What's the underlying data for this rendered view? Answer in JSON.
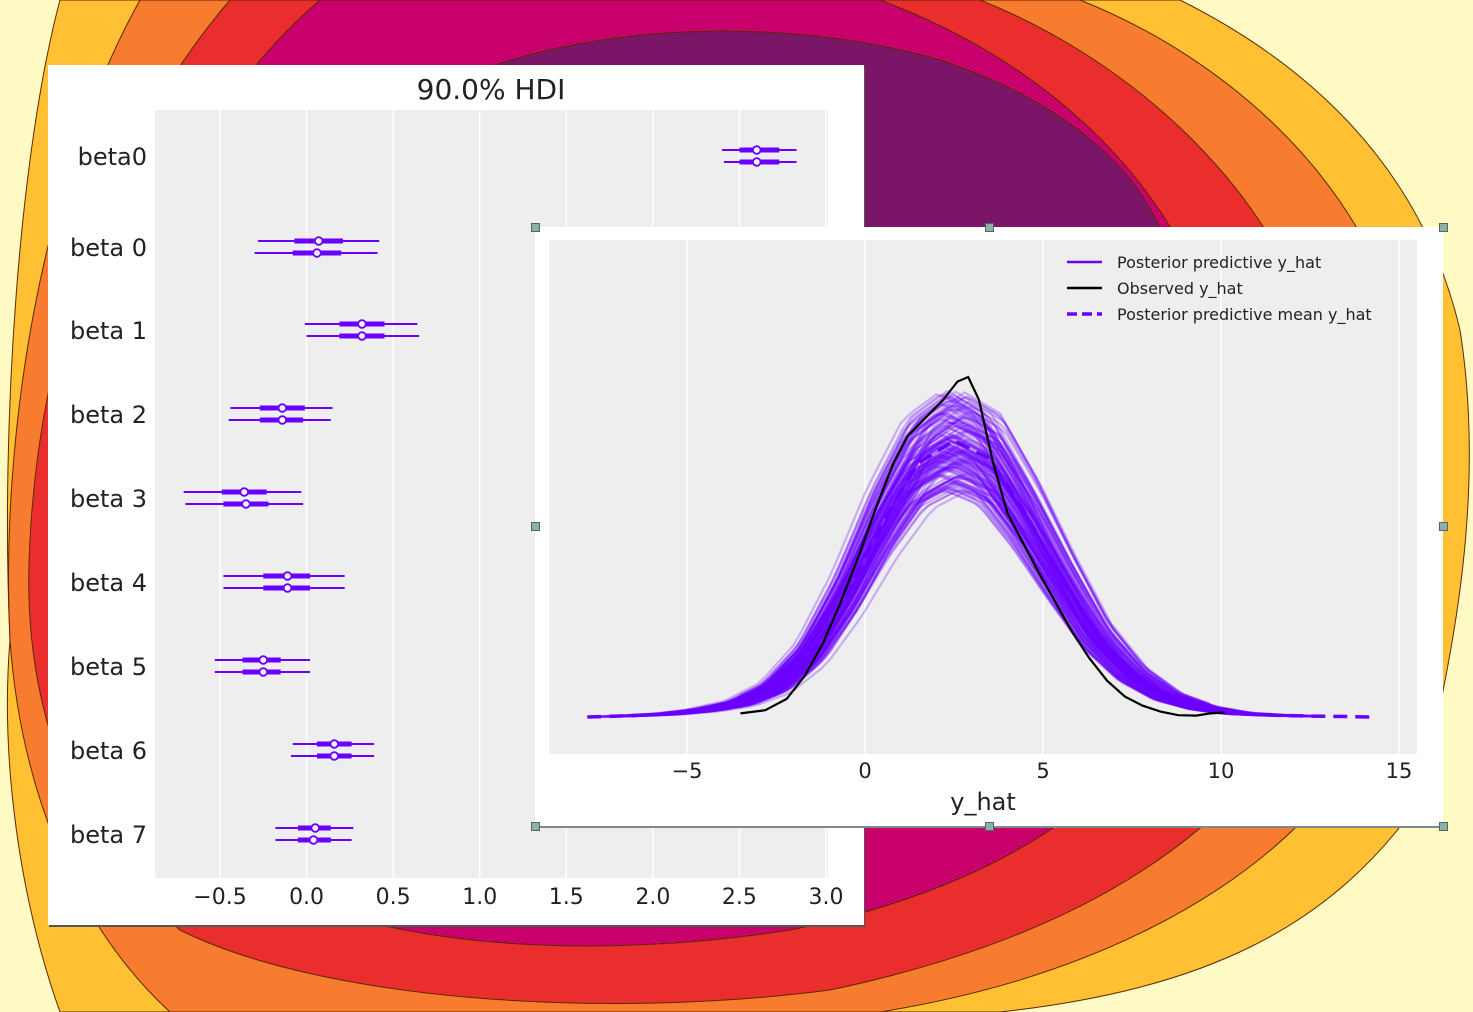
{
  "colors": {
    "accent": "#6a00ff",
    "observed": "#000000",
    "plot_bg": "#eeeeee",
    "grid": "#ffffff",
    "background_bands": [
      "#fff9c4",
      "#ffc033",
      "#f87c30",
      "#ea2e2e",
      "#c8006c",
      "#7a1568"
    ]
  },
  "chart_data": [
    {
      "type": "forest",
      "title": "90.0% HDI",
      "xlabel": "",
      "ylabel": "",
      "xlim": [
        -0.88,
        3.0
      ],
      "xticks": [
        -0.5,
        0.0,
        0.5,
        1.0,
        1.5,
        2.0,
        2.5,
        3.0
      ],
      "xtick_labels": [
        "−0.5",
        "0.0",
        "0.5",
        "1.0",
        "1.5",
        "2.0",
        "2.5",
        "3.0"
      ],
      "grid": true,
      "rows": [
        {
          "label": "beta0",
          "chains": [
            {
              "hdi": [
                2.4,
                2.83
              ],
              "iqr": [
                2.5,
                2.73
              ],
              "median": 2.6
            },
            {
              "hdi": [
                2.41,
                2.83
              ],
              "iqr": [
                2.5,
                2.73
              ],
              "median": 2.6
            }
          ]
        },
        {
          "label": "beta 0",
          "chains": [
            {
              "hdi": [
                -0.28,
                0.42
              ],
              "iqr": [
                -0.07,
                0.21
              ],
              "median": 0.07
            },
            {
              "hdi": [
                -0.3,
                0.41
              ],
              "iqr": [
                -0.08,
                0.2
              ],
              "median": 0.06
            }
          ]
        },
        {
          "label": "beta 1",
          "chains": [
            {
              "hdi": [
                -0.01,
                0.64
              ],
              "iqr": [
                0.19,
                0.45
              ],
              "median": 0.32
            },
            {
              "hdi": [
                0.0,
                0.65
              ],
              "iqr": [
                0.19,
                0.45
              ],
              "median": 0.32
            }
          ]
        },
        {
          "label": "beta 2",
          "chains": [
            {
              "hdi": [
                -0.44,
                0.15
              ],
              "iqr": [
                -0.27,
                -0.01
              ],
              "median": -0.14
            },
            {
              "hdi": [
                -0.45,
                0.14
              ],
              "iqr": [
                -0.27,
                -0.02
              ],
              "median": -0.14
            }
          ]
        },
        {
          "label": "beta 3",
          "chains": [
            {
              "hdi": [
                -0.71,
                -0.03
              ],
              "iqr": [
                -0.49,
                -0.23
              ],
              "median": -0.36
            },
            {
              "hdi": [
                -0.7,
                -0.02
              ],
              "iqr": [
                -0.48,
                -0.22
              ],
              "median": -0.35
            }
          ]
        },
        {
          "label": "beta 4",
          "chains": [
            {
              "hdi": [
                -0.48,
                0.22
              ],
              "iqr": [
                -0.25,
                0.02
              ],
              "median": -0.11
            },
            {
              "hdi": [
                -0.48,
                0.22
              ],
              "iqr": [
                -0.25,
                0.02
              ],
              "median": -0.11
            }
          ]
        },
        {
          "label": "beta 5",
          "chains": [
            {
              "hdi": [
                -0.53,
                0.02
              ],
              "iqr": [
                -0.37,
                -0.15
              ],
              "median": -0.25
            },
            {
              "hdi": [
                -0.53,
                0.02
              ],
              "iqr": [
                -0.37,
                -0.15
              ],
              "median": -0.25
            }
          ]
        },
        {
          "label": "beta 6",
          "chains": [
            {
              "hdi": [
                -0.08,
                0.39
              ],
              "iqr": [
                0.06,
                0.26
              ],
              "median": 0.16
            },
            {
              "hdi": [
                -0.09,
                0.39
              ],
              "iqr": [
                0.06,
                0.26
              ],
              "median": 0.16
            }
          ]
        },
        {
          "label": "beta 7",
          "chains": [
            {
              "hdi": [
                -0.18,
                0.27
              ],
              "iqr": [
                -0.05,
                0.14
              ],
              "median": 0.05
            },
            {
              "hdi": [
                -0.18,
                0.26
              ],
              "iqr": [
                -0.05,
                0.14
              ],
              "median": 0.04
            }
          ]
        }
      ]
    },
    {
      "type": "line",
      "title": "",
      "xlabel": "y_hat",
      "ylabel": "",
      "xlim": [
        -9.5,
        15.5
      ],
      "xticks": [
        -5,
        0,
        5,
        10,
        15
      ],
      "xtick_labels": [
        "−5",
        "0",
        "5",
        "10",
        "15"
      ],
      "grid": true,
      "legend_position": "top-right",
      "legend": [
        {
          "label": "Posterior predictive y_hat",
          "style": "solid",
          "color": "#6a00ff"
        },
        {
          "label": "Observed y_hat",
          "style": "solid",
          "color": "#000000"
        },
        {
          "label": "Posterior predictive mean y_hat",
          "style": "dashed",
          "color": "#6a00ff"
        }
      ],
      "series": [
        {
          "name": "Observed y_hat",
          "x": [
            -3.5,
            -2.8,
            -2.2,
            -1.7,
            -1.2,
            -0.7,
            -0.2,
            0.3,
            0.8,
            1.2,
            1.7,
            2.2,
            2.6,
            2.9,
            3.2,
            3.6,
            4.0,
            4.4,
            4.8,
            5.3,
            5.8,
            6.3,
            6.8,
            7.3,
            7.8,
            8.3,
            8.8,
            9.3,
            9.7,
            10.1
          ],
          "y": [
            0.008,
            0.015,
            0.04,
            0.09,
            0.16,
            0.25,
            0.35,
            0.46,
            0.56,
            0.62,
            0.66,
            0.7,
            0.74,
            0.75,
            0.7,
            0.56,
            0.45,
            0.39,
            0.33,
            0.26,
            0.19,
            0.13,
            0.08,
            0.045,
            0.025,
            0.012,
            0.004,
            0.003,
            0.008,
            0.01
          ]
        },
        {
          "name": "Posterior predictive mean y_hat",
          "x": [
            -7.8,
            -6.5,
            -5.5,
            -4.5,
            -3.5,
            -2.5,
            -1.5,
            -0.5,
            0.5,
            1.5,
            2.5,
            3.5,
            4.5,
            5.5,
            6.5,
            7.5,
            8.5,
            9.5,
            10.5,
            11.5,
            12.5,
            13.5,
            14.2
          ],
          "y": [
            0.0,
            0.003,
            0.007,
            0.015,
            0.03,
            0.065,
            0.14,
            0.27,
            0.43,
            0.56,
            0.61,
            0.57,
            0.45,
            0.31,
            0.18,
            0.095,
            0.045,
            0.02,
            0.008,
            0.004,
            0.002,
            0.001,
            0.0
          ]
        }
      ],
      "note_ppc_band": "many semi-transparent posterior predictive curves surround the mean"
    }
  ]
}
